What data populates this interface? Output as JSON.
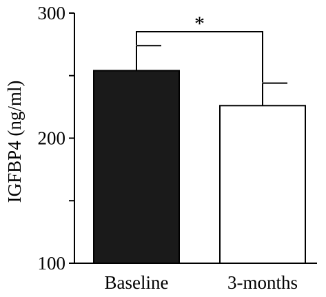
{
  "chart_data": {
    "type": "bar",
    "ylabel": "IGFBP4 (ng/ml)",
    "ylim": [
      100,
      300
    ],
    "yticks": [
      100,
      200,
      300
    ],
    "yticks_labeled": [
      "100",
      "200",
      "300"
    ],
    "categories": [
      "Baseline",
      "3-months"
    ],
    "values": [
      254,
      226
    ],
    "errors": [
      20,
      18
    ],
    "bar_fill": [
      "#1a1a1a",
      "#ffffff"
    ],
    "significance": {
      "between": [
        0,
        1
      ],
      "label": "*"
    }
  }
}
